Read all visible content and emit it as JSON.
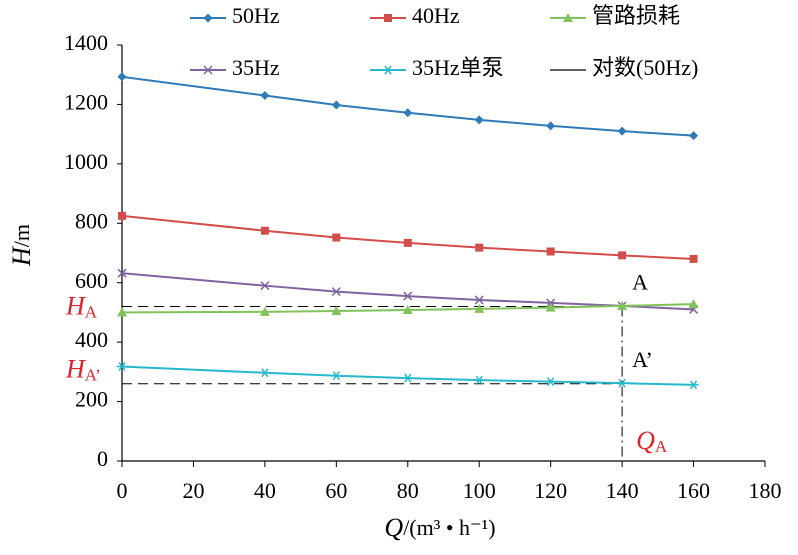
{
  "chart_data": {
    "type": "line",
    "x_label": {
      "symbol": "Q",
      "unit": "/(m³ • h⁻¹)"
    },
    "y_label": {
      "symbol": "H",
      "unit": "/m"
    },
    "x": [
      0,
      40,
      60,
      80,
      100,
      120,
      140,
      160
    ],
    "xlim": [
      0,
      180
    ],
    "xticks": [
      0,
      20,
      40,
      60,
      80,
      100,
      120,
      140,
      160,
      180
    ],
    "ylim": [
      0,
      1400
    ],
    "yticks": [
      0,
      200,
      400,
      600,
      800,
      1000,
      1200,
      1400
    ],
    "grid": false,
    "legend": "top",
    "series": [
      {
        "name": "50Hz",
        "color": "#2f7ab8",
        "marker": "diamond",
        "values": [
          1293,
          1230,
          1198,
          1172,
          1148,
          1128,
          1110,
          1095
        ]
      },
      {
        "name": "40Hz",
        "color": "#d24e4b",
        "marker": "square",
        "values": [
          825,
          775,
          752,
          734,
          718,
          705,
          692,
          680
        ]
      },
      {
        "name": "管路损耗",
        "color": "#82c25a",
        "marker": "triangle",
        "values": [
          500,
          502,
          505,
          508,
          512,
          516,
          522,
          528
        ]
      },
      {
        "name": "35Hz",
        "color": "#8064a2",
        "marker": "x",
        "values": [
          632,
          590,
          570,
          555,
          542,
          532,
          522,
          510
        ]
      },
      {
        "name": "35Hz单泵",
        "color": "#26b9cc",
        "marker": "asterisk",
        "values": [
          318,
          297,
          287,
          279,
          272,
          267,
          262,
          256
        ]
      },
      {
        "name": "对数(50Hz)",
        "color": "#000000",
        "marker": "none",
        "values": [
          1293,
          1230,
          1198,
          1172,
          1148,
          1128,
          1110,
          1095
        ]
      }
    ],
    "annotations": [
      {
        "text": "A",
        "x": 140,
        "y": 520,
        "h_symbol": "H",
        "h_subscript": "A",
        "q_symbol": "Q",
        "q_subscript": "A"
      },
      {
        "text": "A’",
        "x": 140,
        "y": 260,
        "h_symbol": "H",
        "h_subscript": "A’"
      }
    ],
    "annotation_color": "#e0202a"
  }
}
